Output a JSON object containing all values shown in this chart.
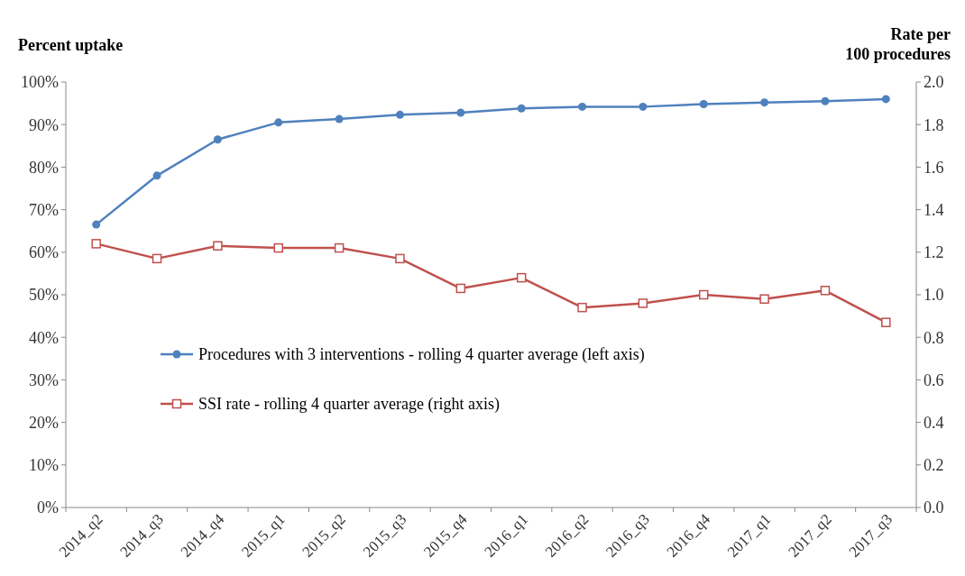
{
  "chart_data": {
    "type": "line",
    "ylabel": "Percent uptake",
    "y2label": "Rate per 100 procedures",
    "categories": [
      "2014_q2",
      "2014_q3",
      "2014_q4",
      "2015_q1",
      "2015_q2",
      "2015_q3",
      "2015_q4",
      "2016_q1",
      "2016_q2",
      "2016_q3",
      "2016_q4",
      "2017_q1",
      "2017_q2",
      "2017_q3"
    ],
    "series": [
      {
        "name": "Procedures with 3 interventions - rolling 4 quarter average (left axis)",
        "color": "#4f81bd",
        "marker": "circle",
        "values": [
          66.5,
          78,
          86.5,
          90.5,
          91.3,
          92.3,
          92.8,
          93.8,
          94.2,
          94.2,
          94.8,
          95.2,
          95.5,
          96
        ]
      },
      {
        "name": "SSI rate - rolling 4 quarter average (right axis)",
        "color": "#c0504d",
        "marker": "square",
        "axis": "y2",
        "values": [
          1.24,
          1.17,
          1.23,
          1.22,
          1.22,
          1.17,
          1.03,
          1.08,
          0.94,
          0.96,
          1.0,
          0.98,
          1.02,
          0.87
        ]
      }
    ],
    "ylim": [
      0,
      100
    ],
    "yticks": [
      {
        "value": 0,
        "label": "0%"
      },
      {
        "value": 10,
        "label": "10%"
      },
      {
        "value": 20,
        "label": "20%"
      },
      {
        "value": 30,
        "label": "30%"
      },
      {
        "value": 40,
        "label": "40%"
      },
      {
        "value": 50,
        "label": "50%"
      },
      {
        "value": 60,
        "label": "60%"
      },
      {
        "value": 70,
        "label": "70%"
      },
      {
        "value": 80,
        "label": "80%"
      },
      {
        "value": 90,
        "label": "90%"
      },
      {
        "value": 100,
        "label": "100%"
      }
    ],
    "y2lim": [
      0,
      2
    ],
    "y2ticks": [
      {
        "value": 0,
        "label": "0.0"
      },
      {
        "value": 0.2,
        "label": "0.2"
      },
      {
        "value": 0.4,
        "label": "0.4"
      },
      {
        "value": 0.6,
        "label": "0.6"
      },
      {
        "value": 0.8,
        "label": "0.8"
      },
      {
        "value": 1,
        "label": "1.0"
      },
      {
        "value": 1.2,
        "label": "1.2"
      },
      {
        "value": 1.4,
        "label": "1.4"
      },
      {
        "value": 1.6,
        "label": "1.6"
      },
      {
        "value": 1.8,
        "label": "1.8"
      },
      {
        "value": 2,
        "label": "2.0"
      }
    ],
    "legend": "center left",
    "line_style": "solid"
  }
}
